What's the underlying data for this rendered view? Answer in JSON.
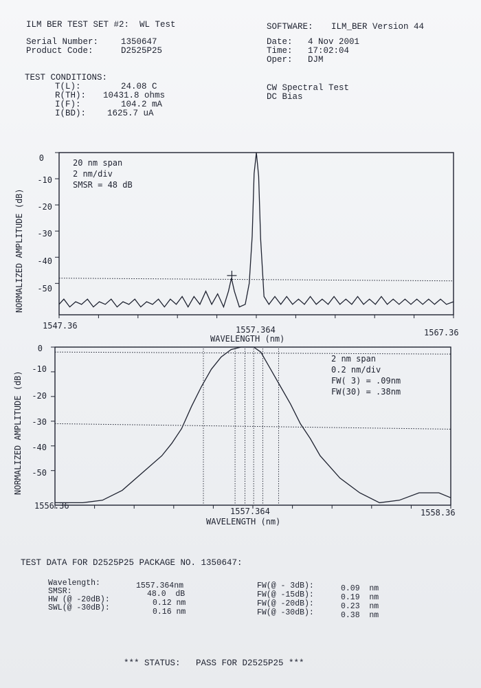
{
  "header": {
    "left_title": "ILM BER TEST SET #2:  WL Test",
    "software_label": "SOFTWARE:",
    "software_value": "ILM_BER Version 44",
    "serial_label": "Serial Number:",
    "serial_value": "1350647",
    "product_label": "Product Code:",
    "product_value": "D2525P25",
    "date_label": "Date:",
    "date_value": "4 Nov 2001",
    "time_label": "Time:",
    "time_value": "17:02:04",
    "oper_label": "Oper:",
    "oper_value": "DJM"
  },
  "conditions": {
    "title": "TEST CONDITIONS:",
    "rows": [
      {
        "label": "T(L):",
        "value": "24.08 C"
      },
      {
        "label": "R(TH):",
        "value": "10431.8 ohms"
      },
      {
        "label": "I(F):",
        "value": "104.2 mA"
      },
      {
        "label": "I(BD):",
        "value": "1625.7 uA"
      }
    ],
    "test_type": "CW Spectral Test",
    "bias": "DC Bias"
  },
  "chart_data": [
    {
      "type": "line",
      "x_tick_labels": [
        "1547.36",
        "1557.364",
        "1567.36"
      ],
      "xlabel": "WAVELENGTH (nm)",
      "ylabel": "NORMALIZED AMPLITUDE (dB)",
      "y_tick_labels": [
        "0",
        "-10",
        "-20",
        "-30",
        "-40",
        "-50"
      ],
      "xlim": [
        1547.36,
        1567.36
      ],
      "ylim": [
        -62,
        0
      ],
      "annotations": [
        "20 nm span",
        "2 nm/div",
        "SMSR = 48 dB"
      ],
      "reference_line_db": -48,
      "marker": {
        "x": 1556.12,
        "y": -47
      },
      "series": [
        {
          "x": [
            1547.36,
            1547.6,
            1547.9,
            1548.2,
            1548.5,
            1548.8,
            1549.1,
            1549.4,
            1549.7,
            1550.0,
            1550.3,
            1550.6,
            1550.9,
            1551.2,
            1551.5,
            1551.8,
            1552.1,
            1552.4,
            1552.7,
            1553.0,
            1553.3,
            1553.6,
            1553.9,
            1554.2,
            1554.5,
            1554.8,
            1555.1,
            1555.4,
            1555.7,
            1555.95,
            1556.1,
            1556.25,
            1556.5,
            1556.8,
            1557.0,
            1557.15,
            1557.25,
            1557.364,
            1557.48,
            1557.58,
            1557.75,
            1558.0,
            1558.3,
            1558.6,
            1558.9,
            1559.2,
            1559.5,
            1559.8,
            1560.1,
            1560.4,
            1560.7,
            1561.0,
            1561.3,
            1561.6,
            1561.9,
            1562.2,
            1562.5,
            1562.8,
            1563.1,
            1563.4,
            1563.7,
            1564.0,
            1564.3,
            1564.6,
            1564.9,
            1565.2,
            1565.5,
            1565.8,
            1566.1,
            1566.4,
            1566.7,
            1567.0,
            1567.36
          ],
          "y": [
            -58,
            -56,
            -59,
            -57,
            -58,
            -56,
            -59,
            -57,
            -58,
            -56,
            -59,
            -57,
            -58,
            -56,
            -59,
            -57,
            -58,
            -56,
            -59,
            -56,
            -58,
            -55,
            -59,
            -55,
            -58,
            -53,
            -58,
            -54,
            -59,
            -53,
            -48,
            -53,
            -59,
            -58,
            -50,
            -32,
            -8,
            0,
            -9,
            -33,
            -55,
            -58,
            -55,
            -58,
            -55,
            -58,
            -56,
            -58,
            -55,
            -58,
            -56,
            -58,
            -55,
            -58,
            -56,
            -58,
            -55,
            -58,
            -56,
            -58,
            -55,
            -58,
            -56,
            -58,
            -56,
            -58,
            -56,
            -58,
            -56,
            -58,
            -56,
            -58,
            -57
          ]
        }
      ]
    },
    {
      "type": "line",
      "x_tick_labels": [
        "1556.36",
        "1557.364",
        "1558.36"
      ],
      "xlabel": "WAVELENGTH (nm)",
      "ylabel": "NORMALIZED AMPLITUDE (dB)",
      "y_tick_labels": [
        "0",
        "-10",
        "-20",
        "-30",
        "-40",
        "-50"
      ],
      "xlim": [
        1556.36,
        1558.36
      ],
      "ylim": [
        -64,
        0
      ],
      "annotations": [
        "2 nm span",
        "0.2 nm/div",
        "FW( 3) = .09nm",
        "FW(30) = .38nm"
      ],
      "reference_lines_db": [
        -2,
        -31
      ],
      "vertical_markers": [
        1557.11,
        1557.27,
        1557.32,
        1557.364,
        1557.41,
        1557.49
      ],
      "series": [
        {
          "x": [
            1556.36,
            1556.5,
            1556.6,
            1556.7,
            1556.8,
            1556.9,
            1556.95,
            1557.0,
            1557.05,
            1557.1,
            1557.15,
            1557.2,
            1557.25,
            1557.3,
            1557.35,
            1557.364,
            1557.4,
            1557.45,
            1557.5,
            1557.55,
            1557.6,
            1557.65,
            1557.7,
            1557.8,
            1557.9,
            1558.0,
            1558.1,
            1558.2,
            1558.3,
            1558.36
          ],
          "y": [
            -63,
            -63,
            -62,
            -58,
            -51,
            -44,
            -39,
            -33,
            -24,
            -16,
            -9,
            -4,
            -1,
            0,
            0,
            0,
            -2,
            -9,
            -16,
            -23,
            -31,
            -37,
            -44,
            -53,
            -59,
            -63,
            -62,
            -59,
            -59,
            -61
          ]
        }
      ]
    }
  ],
  "test_data": {
    "title": "TEST DATA FOR D2525P25 PACKAGE NO. 1350647:",
    "left": [
      {
        "label": "Wavelength:",
        "value": "1557.364nm"
      },
      {
        "label": "SMSR:",
        "value": "48.0  dB"
      },
      {
        "label": "HW (@ -20dB):",
        "value": "0.12 nm"
      },
      {
        "label": "SWL(@ -30dB):",
        "value": "0.16 nm"
      }
    ],
    "right": [
      {
        "label": "FW(@ - 3dB):",
        "value": "0.09  nm"
      },
      {
        "label": "FW(@ -15dB):",
        "value": "0.19  nm"
      },
      {
        "label": "FW(@ -20dB):",
        "value": "0.23  nm"
      },
      {
        "label": "FW(@ -30dB):",
        "value": "0.38  nm"
      }
    ]
  },
  "status": "*** STATUS:   PASS FOR D2525P25 ***"
}
